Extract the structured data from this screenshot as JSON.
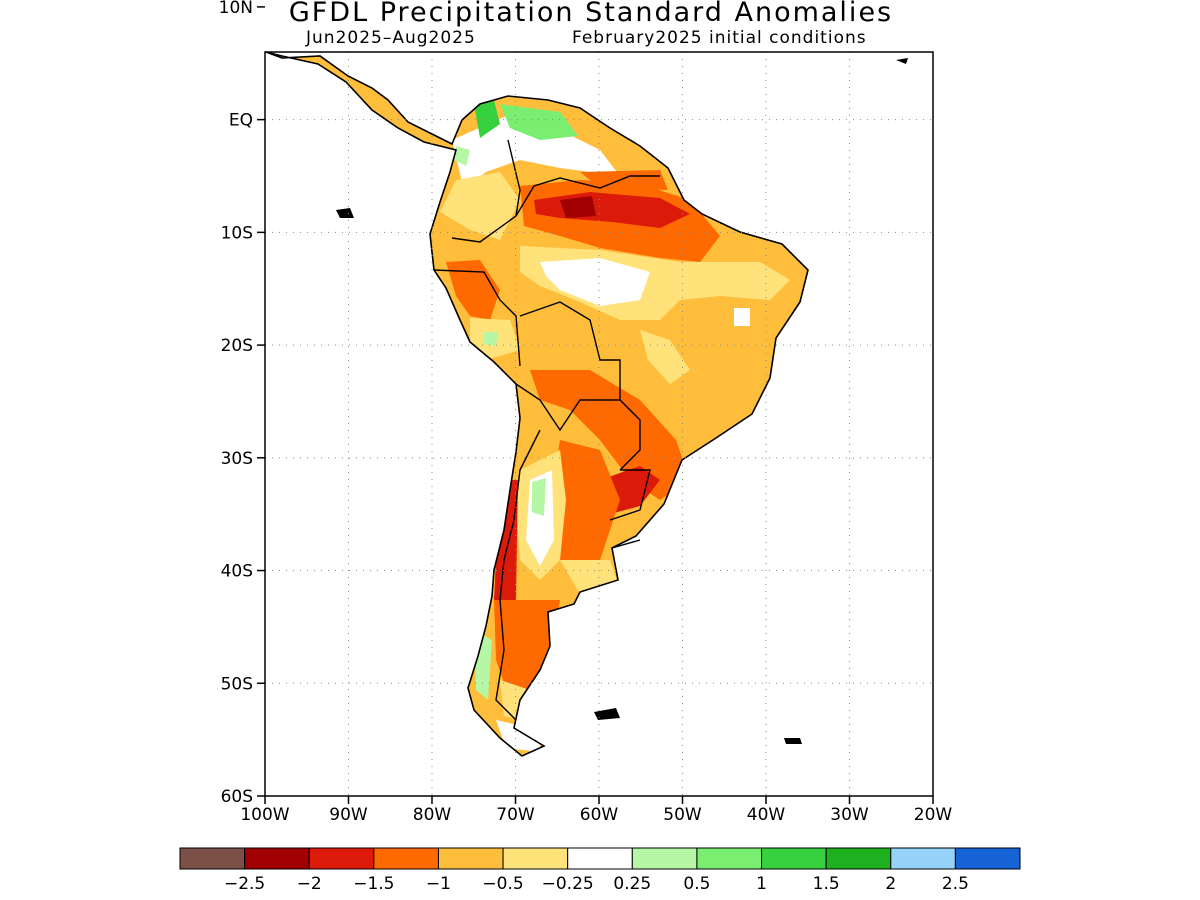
{
  "header": {
    "title": "GFDL Precipitation Standard Anomalies",
    "period": "Jun2025–Aug2025",
    "initial_conditions": "February2025 initial conditions"
  },
  "map": {
    "lon_range": [
      -100,
      -20
    ],
    "lat_range": [
      -60,
      6
    ],
    "lon_ticks": [
      {
        "value": -100,
        "label": "100W"
      },
      {
        "value": -90,
        "label": "90W"
      },
      {
        "value": -80,
        "label": "80W"
      },
      {
        "value": -70,
        "label": "70W"
      },
      {
        "value": -60,
        "label": "60W"
      },
      {
        "value": -50,
        "label": "50W"
      },
      {
        "value": -40,
        "label": "40W"
      },
      {
        "value": -30,
        "label": "30W"
      },
      {
        "value": -20,
        "label": "20W"
      }
    ],
    "lat_ticks": [
      {
        "value": 10,
        "label": "10N"
      },
      {
        "value": 0,
        "label": "EQ"
      },
      {
        "value": -10,
        "label": "10S"
      },
      {
        "value": -20,
        "label": "20S"
      },
      {
        "value": -30,
        "label": "30S"
      },
      {
        "value": -40,
        "label": "40S"
      },
      {
        "value": -50,
        "label": "50S"
      },
      {
        "value": -60,
        "label": "60S"
      }
    ],
    "grid": "dotted"
  },
  "legend": {
    "colors": [
      "#7b5147",
      "#a00000",
      "#dc1a0a",
      "#ff6a00",
      "#ffbd3c",
      "#ffe27a",
      "#ffffff",
      "#b5f7a5",
      "#79ee70",
      "#37d13f",
      "#1eb01e",
      "#96d2fa",
      "#1663d6"
    ],
    "labels": [
      "−2.5",
      "−2",
      "−1.5",
      "−1",
      "−0.5",
      "−0.25",
      "0.25",
      "0.5",
      "1",
      "1.5",
      "2",
      "2.5"
    ]
  }
}
